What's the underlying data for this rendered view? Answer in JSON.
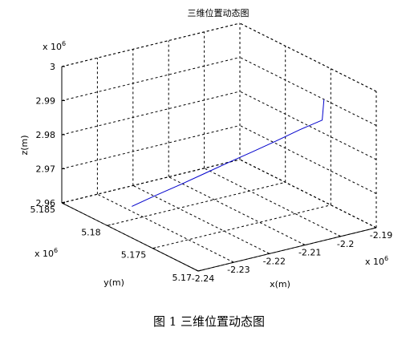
{
  "figure_caption": "图 1 三维位置动态图",
  "chart_data": {
    "type": "line3d",
    "title": "三维位置动态图",
    "xlabel": "x(m)",
    "ylabel": "y(m)",
    "zlabel": "z(m)",
    "x_exponent_label": "x 10",
    "x_exponent_power": "6",
    "y_exponent_label": "x 10",
    "y_exponent_power": "6",
    "z_exponent_label": "x 10",
    "z_exponent_power": "6",
    "xlim": [
      -2.24,
      -2.19
    ],
    "ylim": [
      5.17,
      5.185
    ],
    "zlim": [
      2.96,
      3.0
    ],
    "xticks": [
      -2.24,
      -2.23,
      -2.22,
      -2.21,
      -2.2,
      -2.19
    ],
    "xtick_labels": [
      "-2.24",
      "-2.23",
      "-2.22",
      "-2.21",
      "-2.2",
      "-2.19"
    ],
    "yticks": [
      5.17,
      5.175,
      5.18,
      5.185
    ],
    "ytick_labels": [
      "5.17",
      "5.175",
      "5.18",
      "5.185"
    ],
    "zticks": [
      2.96,
      2.97,
      2.98,
      2.99,
      3.0
    ],
    "ztick_labels": [
      "2.96",
      "2.97",
      "2.98",
      "2.99",
      "3"
    ],
    "grid": true,
    "line_color": "#0000cc",
    "series": [
      {
        "x": [
          -2.2308,
          -2.2264,
          -2.222,
          -2.2176,
          -2.2132,
          -2.2088,
          -2.2044,
          -2.2,
          -2.196,
          -2.1955
        ],
        "y": [
          5.1809,
          5.18,
          5.179,
          5.1781,
          5.1772,
          5.1763,
          5.1754,
          5.1745,
          5.1736,
          5.1736
        ],
        "z": [
          2.9621,
          2.9654,
          2.9688,
          2.9721,
          2.9754,
          2.9786,
          2.9819,
          2.9853,
          2.9883,
          2.9943
        ]
      }
    ]
  }
}
